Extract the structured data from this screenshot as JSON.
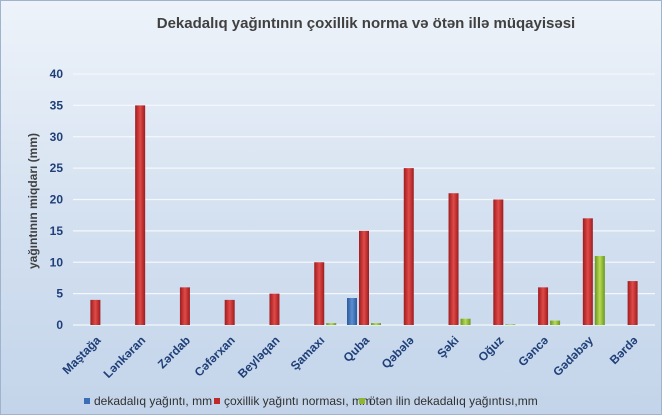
{
  "chart_data": {
    "type": "bar",
    "title": "Dekadalıq yağıntının çoxillik norma  və ötən illə müqayisəsi",
    "xlabel": "",
    "ylabel": "yağıntının miqdarı (mm)",
    "ylim": [
      0,
      40
    ],
    "yticks": [
      0,
      5,
      10,
      15,
      20,
      25,
      30,
      35,
      40
    ],
    "grid": true,
    "legend_position": "bottom",
    "categories": [
      "Maştağa",
      "Lənkəran",
      "Zərdab",
      "Cəfərxan",
      "Beyləqan",
      "Şamaxı",
      "Quba",
      "Qəbələ",
      "Şəki",
      "Oğuz",
      "Gəncə",
      "Gədəbəy",
      "Bərdə"
    ],
    "series": [
      {
        "name": "dekadalıq yağıntı, mm",
        "color": "#3a6fb8",
        "values": [
          0,
          0,
          0,
          0,
          0,
          0,
          4.3,
          0,
          0,
          0,
          0,
          0,
          0
        ]
      },
      {
        "name": "çoxillik yağıntı norması, mm",
        "color": "#c0282a",
        "values": [
          4,
          35,
          6,
          4,
          5,
          10,
          15,
          25,
          21,
          20,
          6,
          17,
          7
        ]
      },
      {
        "name": "ötən ilin dekadalıq yağıntısı,mm",
        "color": "#8fb830",
        "values": [
          0,
          0,
          0,
          0,
          0,
          0.3,
          0.3,
          0,
          1,
          0.1,
          0.7,
          11,
          0
        ]
      }
    ]
  }
}
